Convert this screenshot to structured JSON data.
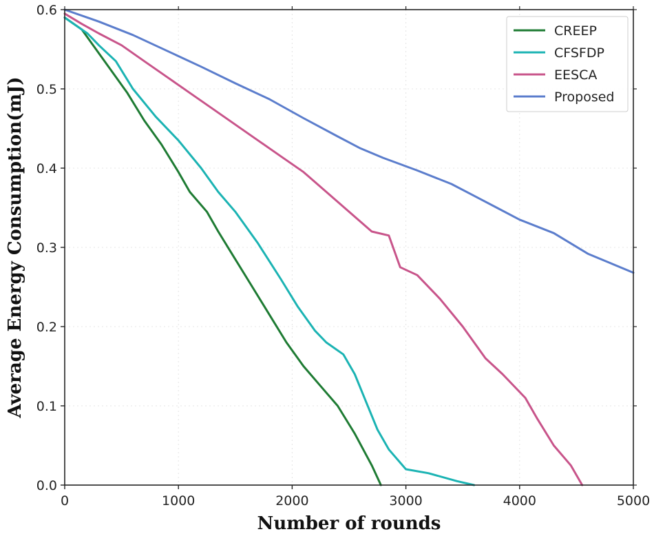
{
  "chart_data": {
    "type": "line",
    "title": "",
    "xlabel": "Number of rounds",
    "ylabel": "Average Energy Consumption(mJ)",
    "xlim": [
      0,
      5000
    ],
    "ylim": [
      0,
      0.6
    ],
    "xticks": [
      "0",
      "1000",
      "2000",
      "3000",
      "4000",
      "5000"
    ],
    "yticks": [
      "0.0",
      "0.1",
      "0.2",
      "0.3",
      "0.4",
      "0.5",
      "0.6"
    ],
    "grid": true,
    "legend_position": "top-right",
    "series": [
      {
        "name": "CREEP",
        "color": "#1e7b33",
        "x": [
          0,
          150,
          250,
          400,
          550,
          700,
          850,
          1000,
          1100,
          1250,
          1350,
          1500,
          1650,
          1800,
          1950,
          2100,
          2250,
          2400,
          2550,
          2700,
          2780
        ],
        "y": [
          0.59,
          0.575,
          0.555,
          0.525,
          0.495,
          0.46,
          0.43,
          0.395,
          0.37,
          0.345,
          0.32,
          0.285,
          0.25,
          0.215,
          0.18,
          0.15,
          0.125,
          0.1,
          0.065,
          0.025,
          0.0
        ]
      },
      {
        "name": "CFSFDP",
        "color": "#1bb3b3",
        "x": [
          0,
          200,
          300,
          450,
          600,
          800,
          1000,
          1200,
          1350,
          1500,
          1700,
          1900,
          2050,
          2200,
          2300,
          2450,
          2550,
          2650,
          2750,
          2850,
          3000,
          3200,
          3450,
          3600
        ],
        "y": [
          0.59,
          0.57,
          0.555,
          0.535,
          0.5,
          0.465,
          0.435,
          0.4,
          0.37,
          0.345,
          0.305,
          0.26,
          0.225,
          0.195,
          0.18,
          0.165,
          0.14,
          0.105,
          0.07,
          0.045,
          0.02,
          0.015,
          0.005,
          0.0
        ]
      },
      {
        "name": "EESCA",
        "color": "#c8548a",
        "x": [
          0,
          150,
          300,
          500,
          700,
          900,
          1100,
          1300,
          1500,
          1700,
          1900,
          2100,
          2300,
          2500,
          2700,
          2850,
          2950,
          3100,
          3300,
          3500,
          3700,
          3850,
          4050,
          4150,
          4300,
          4450,
          4550
        ],
        "y": [
          0.595,
          0.582,
          0.57,
          0.555,
          0.535,
          0.515,
          0.495,
          0.475,
          0.455,
          0.435,
          0.415,
          0.395,
          0.37,
          0.345,
          0.32,
          0.315,
          0.275,
          0.265,
          0.235,
          0.2,
          0.16,
          0.14,
          0.11,
          0.085,
          0.05,
          0.025,
          0.0
        ]
      },
      {
        "name": "Proposed",
        "color": "#5b7dcc",
        "x": [
          0,
          300,
          600,
          900,
          1200,
          1500,
          1800,
          2100,
          2400,
          2600,
          2800,
          3100,
          3400,
          3600,
          3800,
          4000,
          4300,
          4600,
          4800,
          5000
        ],
        "y": [
          0.6,
          0.585,
          0.568,
          0.548,
          0.528,
          0.507,
          0.487,
          0.463,
          0.44,
          0.425,
          0.413,
          0.397,
          0.38,
          0.365,
          0.35,
          0.335,
          0.318,
          0.292,
          0.28,
          0.268
        ]
      }
    ]
  }
}
